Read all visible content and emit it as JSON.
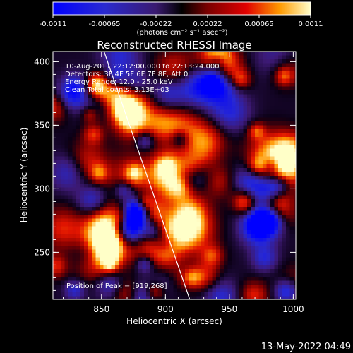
{
  "chart_data": {
    "type": "heatmap",
    "title": "Reconstructed RHESSI Image",
    "xlabel": "Heliocentric X (arcsec)",
    "ylabel": "Heliocentric Y (arcsec)",
    "xlim": [
      812,
      1002
    ],
    "ylim": [
      213,
      408
    ],
    "xticks": [
      850,
      900,
      950,
      1000
    ],
    "yticks": [
      250,
      300,
      350,
      400
    ],
    "colorbar": {
      "range": [
        -0.0011,
        0.0011
      ],
      "ticks": [
        "-0.0011",
        "-0.00065",
        "-0.00022",
        "0.00022",
        "0.00065",
        "0.0011"
      ],
      "unit_label": "(photons cm⁻² s⁻¹ asec⁻²)"
    },
    "annotations": [
      "10-Aug-2011 22:12:00.000 to 22:13:24.000",
      "Detectors: 3F 4F 5F 6F 7F 8F, Att 0",
      "Energy Range: 12.0 - 25.0 keV",
      "Clean     Total counts: 3.13E+03"
    ],
    "peak": {
      "label": "Position of Peak = [919,268]",
      "x": 919,
      "y": 268
    },
    "limb_line": [
      [
        852,
        408
      ],
      [
        919,
        213
      ]
    ],
    "grid": false
  },
  "footer": {
    "date": "13-May-2022 04:49"
  }
}
